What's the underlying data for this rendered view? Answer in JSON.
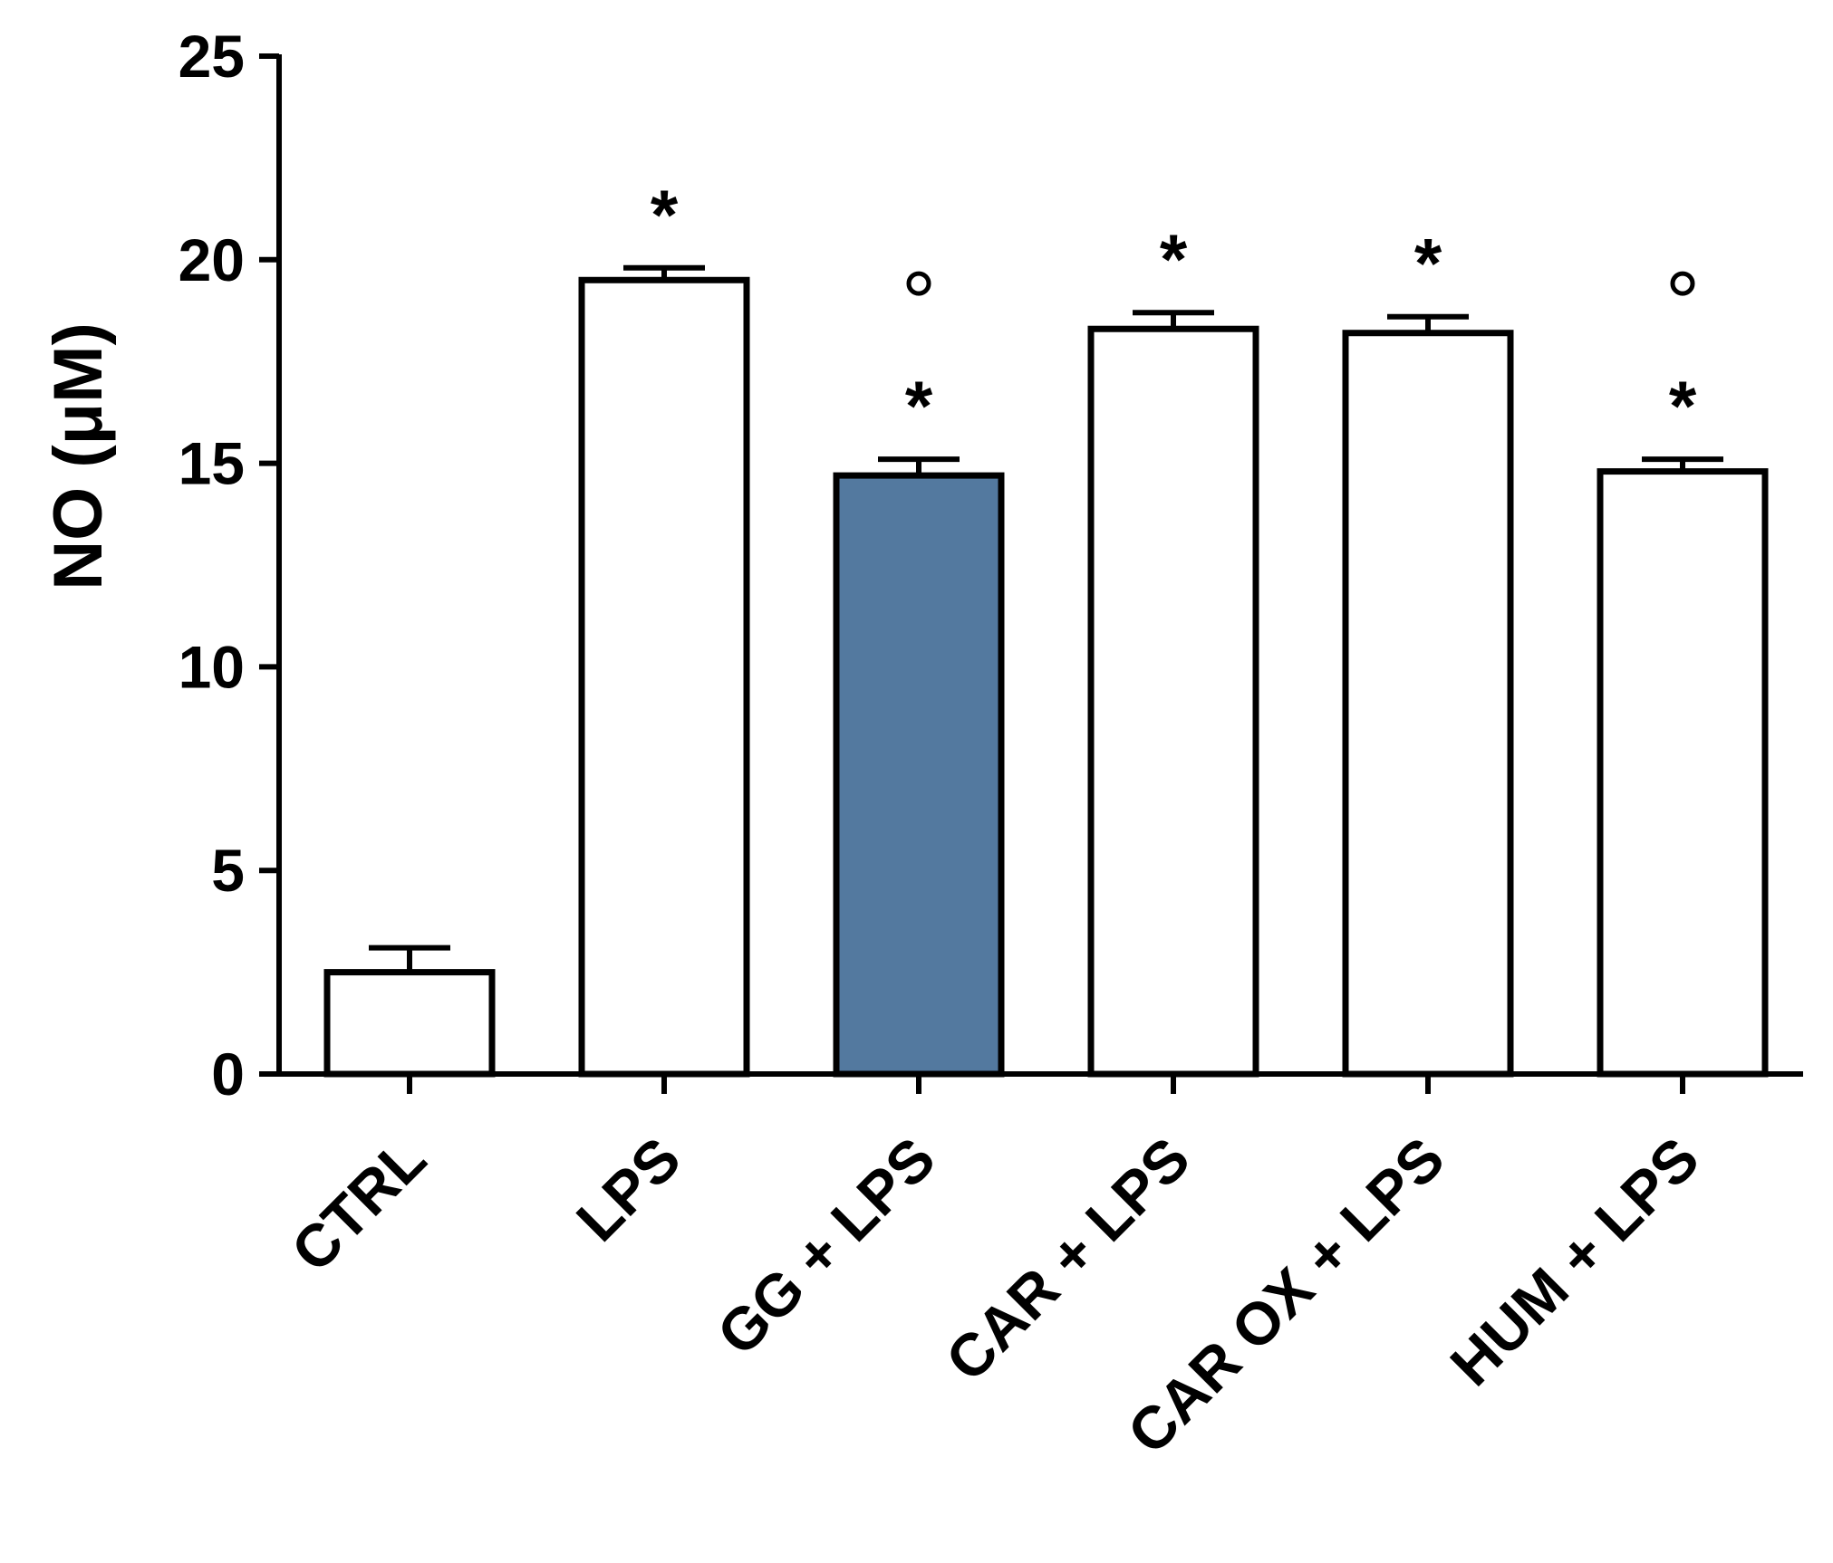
{
  "chart_data": {
    "type": "bar",
    "title": "",
    "xlabel": "",
    "ylabel": "NO (μM)",
    "ylim": [
      0,
      25
    ],
    "yticks": [
      0,
      5,
      10,
      15,
      20,
      25
    ],
    "grid": false,
    "categories": [
      "CTRL",
      "LPS",
      "GG + LPS",
      "CAR + LPS",
      "CAR OX + LPS",
      "HUM + LPS"
    ],
    "values": [
      2.5,
      19.5,
      14.7,
      18.3,
      18.2,
      14.8
    ],
    "errors": [
      0.6,
      0.3,
      0.4,
      0.4,
      0.4,
      0.3
    ],
    "bar_colors": [
      "#ffffff",
      "#ffffff",
      "#53799f",
      "#ffffff",
      "#ffffff",
      "#ffffff"
    ],
    "significance": [
      {
        "category": "LPS",
        "marks": [
          "*"
        ]
      },
      {
        "category": "GG + LPS",
        "marks": [
          "*",
          "°"
        ]
      },
      {
        "category": "CAR + LPS",
        "marks": [
          "*"
        ]
      },
      {
        "category": "CAR OX + LPS",
        "marks": [
          "*"
        ]
      },
      {
        "category": "HUM + LPS",
        "marks": [
          "*",
          "°"
        ]
      }
    ]
  }
}
